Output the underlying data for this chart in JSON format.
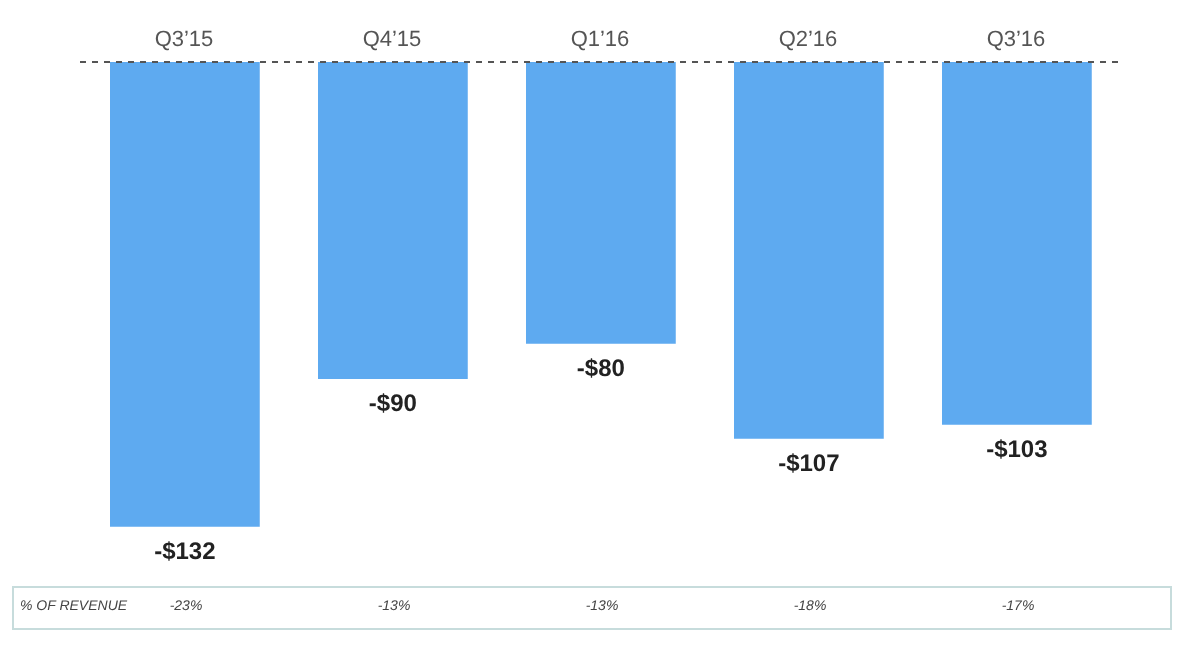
{
  "chart_data": {
    "type": "bar",
    "categories": [
      "Q3’15",
      "Q4’15",
      "Q1’16",
      "Q2’16",
      "Q3’16"
    ],
    "values": [
      -132,
      -90,
      -80,
      -107,
      -103
    ],
    "value_labels": [
      "-$132",
      "-$90",
      "-$80",
      "-$107",
      "-$103"
    ],
    "color": "#5eaaf0",
    "tick_labels": "x",
    "ref_lines": [
      {
        "axis": "y",
        "value": 0,
        "color": "#555555",
        "line_style": "dashed"
      }
    ],
    "annotations": [
      "% OF REVENUE",
      "-23%",
      "-13%",
      "-13%",
      "-18%",
      "-17%"
    ]
  }
}
